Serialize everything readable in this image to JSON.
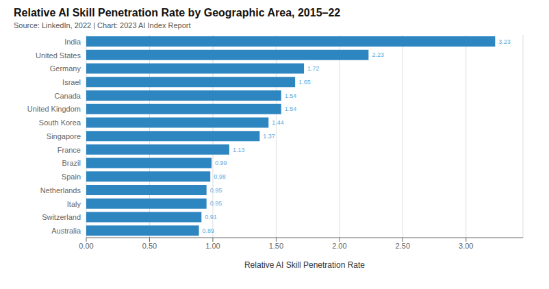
{
  "chart_data": {
    "type": "bar",
    "orientation": "horizontal",
    "title": "Relative AI Skill Penetration Rate by Geographic Area, 2015–22",
    "subtitle": "Source: LinkedIn, 2022 | Chart: 2023 AI Index Report",
    "xlabel": "Relative AI Skill Penetration Rate",
    "categories": [
      "Australia",
      "Switzerland",
      "Italy",
      "Netherlands",
      "Spain",
      "Brazil",
      "France",
      "Singapore",
      "South Korea",
      "United Kingdom",
      "Canada",
      "Israel",
      "Germany",
      "United States",
      "India"
    ],
    "values": [
      0.89,
      0.91,
      0.95,
      0.95,
      0.98,
      0.99,
      1.13,
      1.37,
      1.44,
      1.54,
      1.54,
      1.65,
      1.72,
      2.23,
      3.23
    ],
    "color": "#2E86C1",
    "xlim": [
      0,
      3.45
    ],
    "xticks": [
      {
        "value": 0.0,
        "label": "0.00"
      },
      {
        "value": 0.5,
        "label": "0.50"
      },
      {
        "value": 1.0,
        "label": "1.00"
      },
      {
        "value": 1.5,
        "label": "1.50"
      },
      {
        "value": 2.0,
        "label": "2.00"
      },
      {
        "value": 2.5,
        "label": "2.50"
      },
      {
        "value": 3.0,
        "label": "3.00"
      }
    ],
    "grid": true,
    "data_labels": true
  }
}
